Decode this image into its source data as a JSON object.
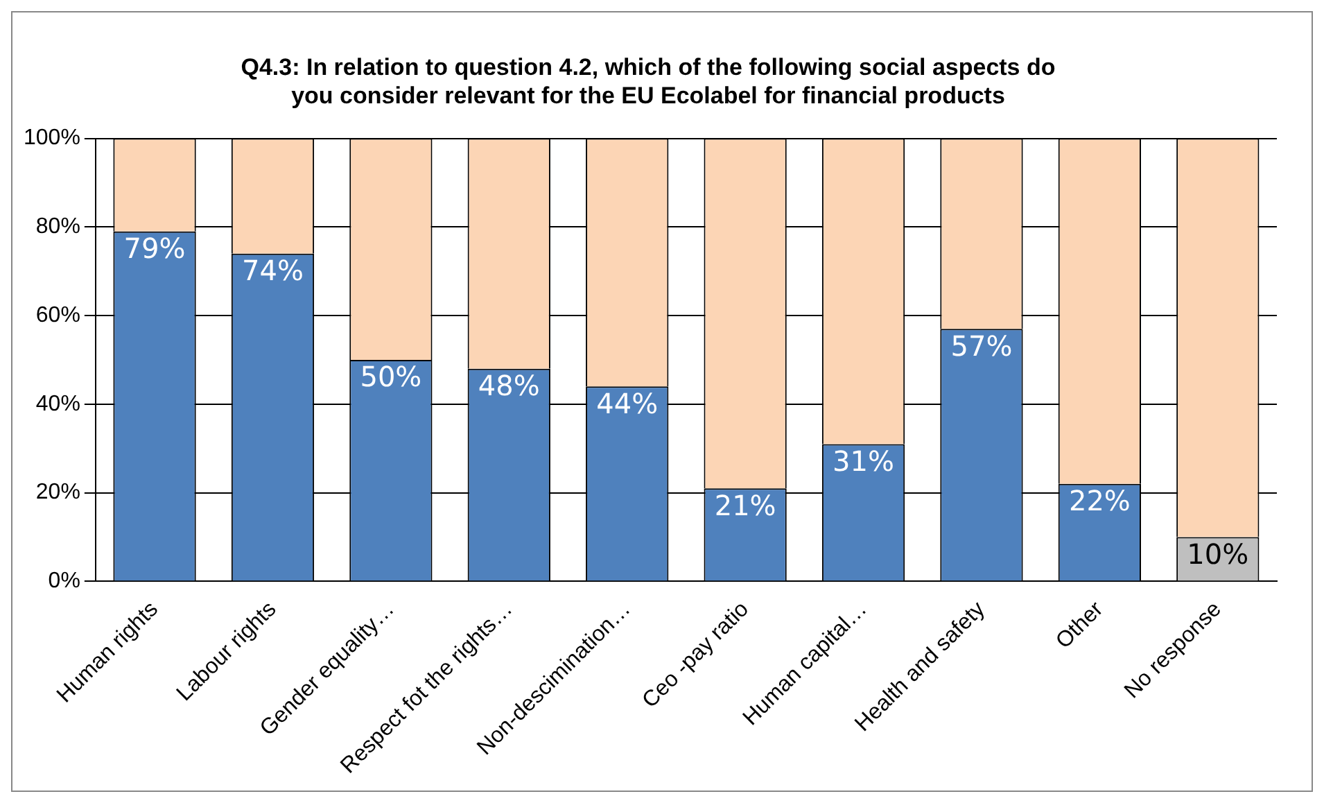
{
  "chart_data": {
    "type": "bar",
    "title": "Q4.3: In relation to question 4.2, which of the following social aspects do\nyou consider relevant for the EU Ecolabel for financial products",
    "categories": [
      "Human rights",
      "Labour rights",
      "Gender equality…",
      "Respect fot the rights…",
      "Non-descimination…",
      "Ceo -pay ratio",
      "Human capital…",
      "Health and safety",
      "Other",
      "No response"
    ],
    "stacked": true,
    "grid": "y",
    "ylim": [
      0,
      100
    ],
    "yticks": [
      {
        "value": 0,
        "label": "0%"
      },
      {
        "value": 20,
        "label": "20%"
      },
      {
        "value": 40,
        "label": "40%"
      },
      {
        "value": 60,
        "label": "60%"
      },
      {
        "value": 80,
        "label": "80%"
      },
      {
        "value": 100,
        "label": "100%"
      }
    ],
    "series": [
      {
        "colors": [
          "#4f81bd",
          "#4f81bd",
          "#4f81bd",
          "#4f81bd",
          "#4f81bd",
          "#4f81bd",
          "#4f81bd",
          "#4f81bd",
          "#4f81bd",
          "#bfbfbf"
        ],
        "values": [
          79,
          74,
          50,
          48,
          44,
          21,
          31,
          57,
          22,
          10
        ],
        "value_labels": [
          "79%",
          "74%",
          "50%",
          "48%",
          "44%",
          "21%",
          "31%",
          "57%",
          "22%",
          "10%"
        ]
      },
      {
        "color": "#fcd5b5",
        "values": [
          21,
          26,
          50,
          52,
          56,
          79,
          69,
          43,
          78,
          90
        ]
      }
    ]
  }
}
